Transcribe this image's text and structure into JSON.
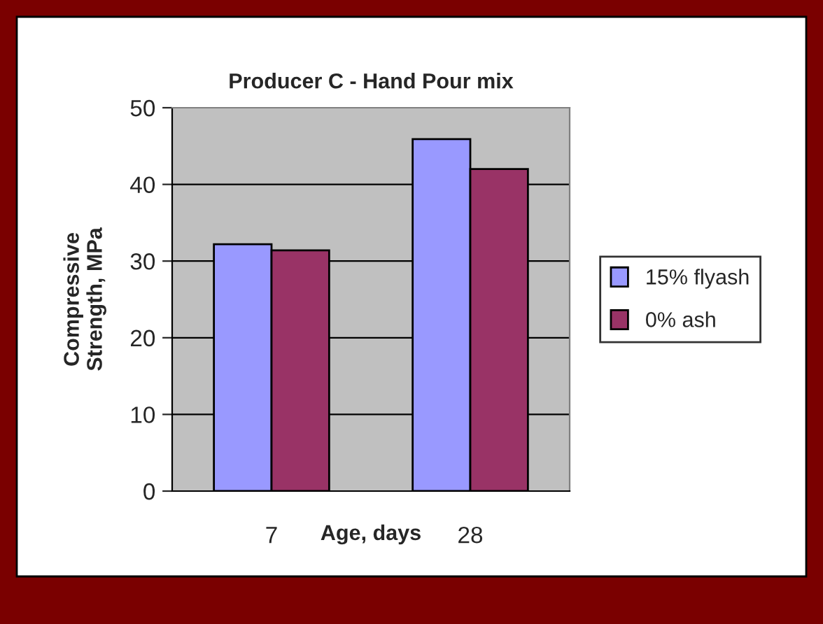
{
  "chart_data": {
    "type": "bar",
    "title": "Producer C - Hand Pour mix",
    "xlabel": "Age, days",
    "ylabel": "Compressive\nStrength, MPa",
    "categories": [
      "7",
      "28"
    ],
    "series": [
      {
        "name": "15% flyash",
        "color": "#9999ff",
        "values": [
          32.2,
          45.9
        ]
      },
      {
        "name": "0% ash",
        "color": "#993366",
        "values": [
          31.4,
          42.0
        ]
      }
    ],
    "ylim": [
      0,
      50
    ],
    "yticks": [
      0,
      10,
      20,
      30,
      40,
      50
    ],
    "grid": "y",
    "legend": "right"
  }
}
